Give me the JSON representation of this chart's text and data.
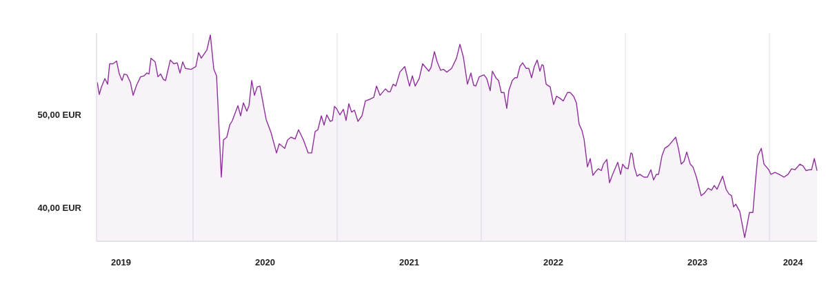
{
  "chart_data": {
    "type": "area",
    "x": [
      2019.335,
      2019.349,
      2019.364,
      2019.388,
      2019.407,
      2019.421,
      2019.445,
      2019.469,
      2019.488,
      2019.507,
      2019.522,
      2019.541,
      2019.565,
      2019.584,
      2019.608,
      2019.636,
      2019.66,
      2019.679,
      2019.694,
      2019.708,
      2019.737,
      2019.756,
      2019.775,
      2019.794,
      2019.809,
      2019.842,
      2019.866,
      2019.89,
      2019.909,
      2019.928,
      2019.947,
      2019.986,
      2020.019,
      2020.038,
      2020.057,
      2020.096,
      2020.12,
      2020.144,
      2020.163,
      2020.196,
      2020.211,
      2020.234,
      2020.254,
      2020.273,
      2020.311,
      2020.33,
      2020.349,
      2020.373,
      2020.388,
      2020.407,
      2020.426,
      2020.445,
      2020.464,
      2020.507,
      2020.541,
      2020.579,
      2020.598,
      2020.636,
      2020.656,
      2020.679,
      2020.708,
      2020.732,
      2020.766,
      2020.799,
      2020.823,
      2020.847,
      2020.866,
      2020.89,
      2020.909,
      2020.928,
      2020.952,
      2020.967,
      2020.981,
      2020.995,
      2021.019,
      2021.043,
      2021.062,
      2021.081,
      2021.1,
      2021.12,
      2021.144,
      2021.172,
      2021.196,
      2021.23,
      2021.254,
      2021.273,
      2021.297,
      2021.335,
      2021.354,
      2021.368,
      2021.388,
      2021.407,
      2021.435,
      2021.469,
      2021.502,
      2021.522,
      2021.541,
      2021.569,
      2021.593,
      2021.636,
      2021.651,
      2021.675,
      2021.694,
      2021.718,
      2021.737,
      2021.761,
      2021.794,
      2021.828,
      2021.852,
      2021.876,
      2021.904,
      2021.928,
      2021.947,
      2021.962,
      2021.986,
      2022.019,
      2022.038,
      2022.062,
      2022.077,
      2022.105,
      2022.12,
      2022.139,
      2022.158,
      2022.177,
      2022.191,
      2022.215,
      2022.234,
      2022.249,
      2022.268,
      2022.287,
      2022.311,
      2022.33,
      2022.349,
      2022.368,
      2022.388,
      2022.407,
      2022.421,
      2022.431,
      2022.45,
      2022.478,
      2022.502,
      2022.522,
      2022.545,
      2022.569,
      2022.598,
      2022.617,
      2022.641,
      2022.66,
      2022.679,
      2022.699,
      2022.713,
      2022.737,
      2022.756,
      2022.775,
      2022.794,
      2022.813,
      2022.833,
      2022.847,
      2022.871,
      2022.89,
      2022.909,
      2022.928,
      2022.947,
      2022.967,
      2022.981,
      2023.0,
      2023.019,
      2023.038,
      2023.048,
      2023.062,
      2023.081,
      2023.1,
      2023.129,
      2023.153,
      2023.177,
      2023.196,
      2023.215,
      2023.23,
      2023.254,
      2023.273,
      2023.301,
      2023.349,
      2023.368,
      2023.388,
      2023.407,
      2023.426,
      2023.45,
      2023.469,
      2023.493,
      2023.526,
      2023.55,
      2023.574,
      2023.598,
      2023.617,
      2023.636,
      2023.675,
      2023.699,
      2023.718,
      2023.737,
      2023.751,
      2023.766,
      2023.794,
      2023.828,
      2023.861,
      2023.885,
      2023.904,
      2023.919,
      2023.943,
      2023.962,
      2023.995,
      2024.01,
      2024.038,
      2024.067,
      2024.1,
      2024.129,
      2024.153,
      2024.177,
      2024.211,
      2024.234,
      2024.254,
      2024.278,
      2024.292,
      2024.311,
      2024.33
    ],
    "series": [
      {
        "color": "#8e2f9c",
        "values": [
          53.5,
          52.2,
          53.0,
          53.9,
          53.3,
          55.5,
          55.5,
          55.8,
          54.4,
          53.7,
          54.4,
          54.3,
          53.5,
          52.1,
          53.2,
          54.1,
          54.2,
          54.5,
          54.4,
          56.1,
          55.7,
          54.1,
          54.4,
          53.8,
          53.7,
          55.9,
          55.5,
          55.6,
          54.5,
          55.7,
          55.0,
          54.9,
          55.2,
          56.7,
          56.1,
          57.0,
          58.6,
          54.9,
          54.2,
          43.3,
          47.3,
          47.6,
          48.9,
          49.4,
          51.0,
          49.9,
          51.3,
          50.4,
          51.0,
          53.7,
          52.1,
          53.0,
          53.1,
          49.5,
          48.1,
          45.9,
          46.9,
          46.4,
          47.3,
          47.6,
          47.4,
          48.4,
          47.3,
          45.9,
          45.9,
          48.2,
          48.4,
          49.9,
          48.9,
          50.0,
          49.3,
          49.4,
          50.9,
          50.7,
          50.0,
          50.6,
          49.4,
          51.2,
          50.3,
          50.5,
          49.3,
          49.9,
          51.5,
          51.7,
          51.9,
          53.1,
          52.1,
          52.8,
          52.5,
          52.5,
          53.3,
          53.1,
          54.6,
          55.2,
          53.1,
          54.2,
          53.1,
          53.9,
          55.5,
          54.7,
          55.1,
          56.8,
          55.7,
          54.8,
          54.9,
          54.6,
          55.0,
          56.1,
          57.6,
          56.2,
          53.3,
          54.5,
          53.2,
          53.1,
          54.1,
          54.3,
          53.9,
          52.6,
          54.7,
          53.9,
          53.7,
          52.4,
          52.4,
          50.7,
          52.6,
          53.7,
          54.0,
          54.0,
          55.2,
          55.6,
          55.0,
          55.0,
          54.0,
          55.2,
          55.9,
          54.7,
          55.4,
          55.3,
          53.3,
          53.0,
          51.1,
          52.0,
          51.8,
          51.5,
          52.4,
          52.4,
          52.0,
          51.3,
          49.0,
          48.3,
          47.4,
          44.4,
          45.3,
          43.5,
          43.9,
          44.2,
          44.0,
          44.7,
          45.2,
          42.7,
          43.5,
          44.2,
          44.9,
          43.6,
          44.7,
          44.3,
          44.2,
          45.9,
          45.8,
          44.4,
          43.4,
          43.6,
          43.3,
          43.3,
          44.1,
          43.0,
          43.6,
          43.6,
          45.6,
          46.4,
          46.7,
          47.6,
          46.4,
          44.7,
          45.0,
          46.0,
          44.7,
          44.4,
          43.3,
          41.3,
          41.6,
          42.1,
          41.9,
          42.4,
          42.0,
          43.4,
          42.0,
          41.5,
          41.3,
          40.1,
          40.4,
          39.6,
          36.8,
          39.5,
          39.5,
          43.1,
          45.6,
          46.4,
          44.7,
          44.1,
          43.6,
          43.8,
          43.6,
          43.3,
          43.6,
          44.2,
          44.1,
          44.7,
          44.5,
          44.0,
          44.1,
          44.1,
          45.3,
          44.0
        ]
      }
    ],
    "xlim": [
      2019.33,
      2024.33
    ],
    "xticks": [
      {
        "value": 2019.5,
        "label": "2019"
      },
      {
        "value": 2020.5,
        "label": "2020"
      },
      {
        "value": 2021.5,
        "label": "2021"
      },
      {
        "value": 2022.5,
        "label": "2022"
      },
      {
        "value": 2023.5,
        "label": "2023"
      },
      {
        "value": 2024.163,
        "label": "2024"
      }
    ],
    "ylim": [
      36.4,
      58.8
    ],
    "yticks": [
      {
        "value": 40,
        "label": "40,00 EUR"
      },
      {
        "value": 50,
        "label": "50,00 EUR"
      }
    ],
    "ref_lines": [
      {
        "axis": "x",
        "value": 2020,
        "color": "#ebebf0"
      },
      {
        "axis": "x",
        "value": 2021,
        "color": "#ebebf0"
      },
      {
        "axis": "x",
        "value": 2022,
        "color": "#ebebf0"
      },
      {
        "axis": "x",
        "value": 2023,
        "color": "#ebebf0"
      },
      {
        "axis": "x",
        "value": 2024,
        "color": "#ebebf0"
      }
    ],
    "grid": false
  }
}
